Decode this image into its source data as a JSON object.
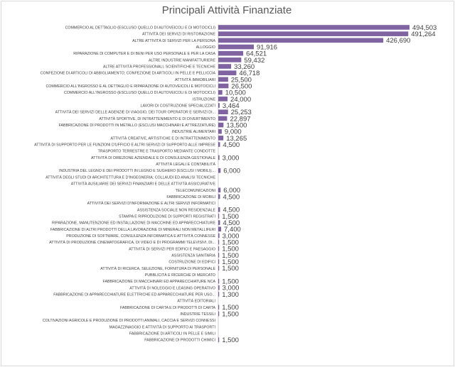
{
  "chart_data": {
    "type": "bar",
    "orientation": "horizontal",
    "title": "Principali Attività Finanziate",
    "bar_color": "#8064a2",
    "label_color": "#404040",
    "grid": false,
    "legend": "none",
    "categories": [
      "COMMERCIO AL DETTAGLIO (ESCLUSO QUELLO DI AUTOVEICOLI E DI MOTOCICLI)",
      "ATTIVITÀ DEI SERVIZI DI RISTORAZIONE",
      "ALTRE ATTIVITÀ DI SERVIZI PER LA PERSONA",
      "ALLOGGIO",
      "RIPARAZIONE DI COMPUTER E DI BENI PER USO PERSONALE E PER LA CASA",
      "ALTRE INDUSTRIE MANIFATTURIERE",
      "ALTRE ATTIVITÀ PROFESSIONALI, SCIENTIFICHE E TECNICHE",
      "CONFEZIONE DI ARTICOLI DI ABBIGLIAMENTO; CONFEZIONE DI ARTICOLI IN PELLE E PELLICCIA",
      "ATTIVITÀ IMMOBILIARI",
      "COMMERCIO ALL'INGROSSO E AL DETTAGLIO E RIPARAZIONE DI AUTOVEICOLI E MOTOCICLI",
      "COMMERCIO ALL'INGROSSO (ESCLUSO QUELLO DI AUTOVEICOLI E DI MOTOCICLI)",
      "ISTRUZIONE",
      "LAVORI DI COSTRUZIONE SPECIALIZZATI",
      "ATTIVITÀ DEI SERVIZI DELLE AGENZIE DI VIAGGIO, DEI TOUR OPERATOR E SERVIZI DI...",
      "ATTIVITÀ SPORTIVE, DI INTRATTENIMENTO E DI DIVERTIMENTO",
      "FABBRICAZIONE DI PRODOTTI IN METALLO (ESCLUSI MACCHINARI E ATTREZZATURE)",
      "INDUSTRIE ALIMENTARI",
      "ATTIVITÀ CREATIVE, ARTISTICHE E DI INTRATTENIMENTO",
      "ATTIVITÀ DI SUPPORTO PER LE FUNZIONI D'UFFICIO E ALTRI SERVIZI DI SUPPORTO ALLE IMPRESE",
      "TRASPORTO TERRESTRE E TRASPORTO MEDIANTE CONDOTTE",
      "ATTIVITÀ DI DIREZIONE AZIENDALE E DI CONSULENZA GESTIONALE",
      "ATTIVITÀ LEGALI E CONTABILITÀ",
      "INDUSTRIA DEL LEGNO E DEI PRODOTTI IN LEGNO E SUGHERO (ESCLUSI I MOBILI);...",
      "ATTIVITÀ DEGLI STUDI DI ARCHITETTURA E D'INGEGNERIA; COLLAUDI ED ANALISI TECNICHE",
      "ATTIVITÀ AUSILIARIE DEI SERVIZI FINANZIARI E DELLE ATTIVITÀ ASSICURATIVE",
      "TELECOMUNICAZIONI",
      "FABBRICAZIONE DI MOBILI",
      "ATTIVITÀ DEI SERVIZI D'INFORMAZIONE E ALTRI SERVIZI INFORMATICI",
      "ASSISTENZA SOCIALE NON RESIDENZIALE",
      "STAMPA E RIPRODUZIONE DI SUPPORTI REGISTRATI",
      "RIPARAZIONE, MANUTENZIONE ED INSTALLAZIONE DI MACCHINE ED APPARECCHIATURE",
      "FABBRICAZIONE DI ALTRI PRODOTTI DELLA LAVORAZIONE DI MINERALI NON METALLIFERI",
      "PRODUZIONE DI SOFTWARE, CONSULENZA INFORMATICA E ATTIVITÀ CONNESSE",
      "ATTIVITÀ DI PRODUZIONE CINEMATOGRAFICA, DI VIDEO E DI PROGRAMMI TELEVISIVI, DI...",
      "ATTIVITÀ DI SERVIZI PER EDIFICI E PAESAGGIO",
      "ASSISTENZA SANITARIA",
      "COSTRUZIONE DI EDIFICI",
      "ATTIVITÀ DI RICERCA, SELEZIONE, FORNITURA DI PERSONALE",
      "PUBBLICITÀ E RICERCHE DI MERCATO",
      "FABBRICAZIONE DI MACCHINARI ED APPARECCHIATURE NCA",
      "ATTIVITÀ DI NOLEGGIO E LEASING OPERATIVO",
      "FABBRICAZIONE DI APPARECCHIATURE ELETTRICHE ED APPARECCHIATURE PER USO...",
      "ATTIVITÀ EDITORIALI",
      "FABBRICAZIONE DI CARTA E DI PRODOTTI DI CARTA",
      "INDUSTRIE TESSILI",
      "COLTIVAZIONI AGRICOLE E PRODUZIONE DI PRODOTTI ANIMALI, CACCIA E SERVIZI CONNESSI",
      "MAGAZZINAGGIO E ATTIVITÀ DI SUPPORTO AI TRASPORTI",
      "FABBRICAZIONE DI ARTICOLI IN PELLE E SIMILI",
      "FABBRICAZIONE DI PRODOTTI CHIMICI"
    ],
    "values": [
      494503,
      491264,
      426690,
      91916,
      64521,
      59432,
      33260,
      46718,
      25500,
      26500,
      10500,
      24000,
      3464,
      25253,
      22897,
      13500,
      9000,
      13265,
      4500,
      null,
      3000,
      null,
      6000,
      null,
      null,
      6000,
      4500,
      null,
      4500,
      1500,
      4500,
      7400,
      3000,
      1500,
      1500,
      1500,
      1500,
      1500,
      null,
      1500,
      3000,
      1300,
      null,
      1500,
      1500,
      null,
      null,
      null,
      1500
    ],
    "value_labels": [
      "494,503",
      "491,264",
      "426,690",
      "91,916",
      "64,521",
      "59,432",
      "33,260",
      "46,718",
      "25,500",
      "26,500",
      "10,500",
      "24,000",
      "3,464",
      "25,253",
      "22,897",
      "13,500",
      "9,000",
      "13,265",
      "4,500",
      "",
      "3,000",
      "",
      "6,000",
      "",
      "",
      "6,000",
      "4,500",
      "",
      "4,500",
      "1,500",
      "4,500",
      "7,400",
      "3,000",
      "1,500",
      "1,500",
      "1,500",
      "1,500",
      "1,500",
      "",
      "1,500",
      "3,000",
      "1,300",
      "",
      "1,500",
      "1,500",
      "",
      "",
      "",
      "1,500"
    ],
    "xlim": [
      0,
      500000
    ]
  }
}
